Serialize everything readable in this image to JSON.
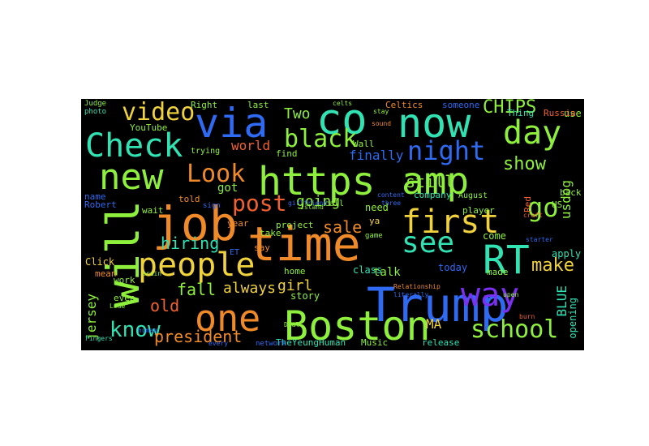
{
  "wordcloud": {
    "background": "#000000",
    "words": [
      {
        "text": "Trump",
        "color": "#2f6af2"
      },
      {
        "text": "Boston",
        "color": "#8ef03c"
      },
      {
        "text": "time",
        "color": "#f08a28"
      },
      {
        "text": "job",
        "color": "#f08a28"
      },
      {
        "text": "https",
        "color": "#8ef03c"
      },
      {
        "text": "people",
        "color": "#f0d23c"
      },
      {
        "text": "new",
        "color": "#8ef03c"
      },
      {
        "text": "now",
        "color": "#31e2b3"
      },
      {
        "text": "co",
        "color": "#31e2b3"
      },
      {
        "text": "via",
        "color": "#2f6af2"
      },
      {
        "text": "amp",
        "color": "#8ef03c"
      },
      {
        "text": "RT",
        "color": "#31e2b3"
      },
      {
        "text": "first",
        "color": "#f0d23c"
      },
      {
        "text": "one",
        "color": "#f08a28"
      },
      {
        "text": "Check",
        "color": "#31e2b3"
      },
      {
        "text": "will",
        "color": "#8ef03c"
      },
      {
        "text": "way",
        "color": "#7b2ff0"
      },
      {
        "text": "day",
        "color": "#8ef03c"
      },
      {
        "text": "Look",
        "color": "#f08a28"
      },
      {
        "text": "night",
        "color": "#2f6af2"
      },
      {
        "text": "post",
        "color": "#f2602e"
      },
      {
        "text": "black",
        "color": "#8ef03c"
      },
      {
        "text": "see",
        "color": "#31e2b3"
      },
      {
        "text": "video",
        "color": "#f0d23c"
      },
      {
        "text": "go",
        "color": "#8ef03c"
      },
      {
        "text": "know",
        "color": "#31e2b3"
      },
      {
        "text": "school",
        "color": "#8ef03c"
      },
      {
        "text": "president",
        "color": "#f08a28"
      },
      {
        "text": "CHIPS",
        "color": "#8ef03c"
      },
      {
        "text": "show",
        "color": "#8ef03c"
      },
      {
        "text": "still",
        "color": "#8ef03c"
      },
      {
        "text": "make",
        "color": "#f0d23c"
      },
      {
        "text": "old",
        "color": "#f2602e"
      },
      {
        "text": "fall",
        "color": "#8ef03c"
      },
      {
        "text": "always",
        "color": "#f0d23c"
      },
      {
        "text": "girl",
        "color": "#f0d23c"
      },
      {
        "text": "hiring",
        "color": "#31e2b3"
      },
      {
        "text": "sale",
        "color": "#f08a28"
      },
      {
        "text": "going",
        "color": "#8ef03c"
      },
      {
        "text": "Two",
        "color": "#8ef03c"
      },
      {
        "text": "jersey",
        "color": "#8ef03c"
      },
      {
        "text": "BLUE",
        "color": "#31e2b3"
      },
      {
        "text": "opening",
        "color": "#31e2b3"
      },
      {
        "text": "MA",
        "color": "#f0d23c"
      },
      {
        "text": "usdog",
        "color": "#8ef03c"
      },
      {
        "text": "finally",
        "color": "#2f6af2"
      },
      {
        "text": "world",
        "color": "#f2602e"
      },
      {
        "text": "got",
        "color": "#8ef03c"
      },
      {
        "text": "YouTube",
        "color": "#8ef03c"
      },
      {
        "text": "Right",
        "color": "#8ef03c"
      },
      {
        "text": "last",
        "color": "#8ef03c"
      },
      {
        "text": "Celtics",
        "color": "#f08a28"
      },
      {
        "text": "Wall",
        "color": "#8ef03c"
      },
      {
        "text": "player",
        "color": "#8ef03c"
      },
      {
        "text": "company",
        "color": "#31e2b3"
      },
      {
        "text": "need",
        "color": "#8ef03c"
      },
      {
        "text": "talk",
        "color": "#8ef03c"
      },
      {
        "text": "class",
        "color": "#31e2b3"
      },
      {
        "text": "today",
        "color": "#2f6af2"
      },
      {
        "text": "come",
        "color": "#8ef03c"
      },
      {
        "text": "apply",
        "color": "#31e2b3"
      },
      {
        "text": "made",
        "color": "#8ef03c"
      },
      {
        "text": "release",
        "color": "#31e2b3"
      },
      {
        "text": "Music",
        "color": "#8ef03c"
      },
      {
        "text": "story",
        "color": "#8ef03c"
      },
      {
        "text": "home",
        "color": "#8ef03c"
      },
      {
        "text": "TheYeungHuman",
        "color": "#31e2b3"
      },
      {
        "text": "Click",
        "color": "#f0d23c"
      },
      {
        "text": "work",
        "color": "#8ef03c"
      },
      {
        "text": "mean",
        "color": "#f08a28"
      },
      {
        "text": "even",
        "color": "#8ef03c"
      },
      {
        "text": "project",
        "color": "#8ef03c"
      },
      {
        "text": "take",
        "color": "#8ef03c"
      },
      {
        "text": "say",
        "color": "#f08a28"
      },
      {
        "text": "year",
        "color": "#f08a28"
      },
      {
        "text": "told",
        "color": "#f08a28"
      },
      {
        "text": "wait",
        "color": "#8ef03c"
      },
      {
        "text": "name",
        "color": "#2f6af2"
      },
      {
        "text": "Robert",
        "color": "#2f6af2"
      },
      {
        "text": "trying",
        "color": "#8ef03c"
      },
      {
        "text": "find",
        "color": "#8ef03c"
      },
      {
        "text": "someone",
        "color": "#2f6af2"
      },
      {
        "text": "use",
        "color": "#8ef03c"
      },
      {
        "text": "Thing",
        "color": "#31e2b3"
      },
      {
        "text": "Russia",
        "color": "#f2602e"
      },
      {
        "text": "back",
        "color": "#8ef03c"
      },
      {
        "text": "August",
        "color": "#8ef03c"
      },
      {
        "text": "Red",
        "color": "#f2602e"
      },
      {
        "text": "US",
        "color": "#8ef03c"
      },
      {
        "text": "ET",
        "color": "#2f6af2"
      },
      {
        "text": "ya",
        "color": "#f0d23c"
      },
      {
        "text": "call",
        "color": "#8ef03c"
      },
      {
        "text": "sign",
        "color": "#2f6af2"
      },
      {
        "text": "game",
        "color": "#8ef03c"
      },
      {
        "text": "network",
        "color": "#2f6af2"
      },
      {
        "text": "Judge",
        "color": "#8ef03c"
      },
      {
        "text": "photo",
        "color": "#31e2b3"
      },
      {
        "text": "content",
        "color": "#2f6af2"
      },
      {
        "text": "literally",
        "color": "#2f6af2"
      },
      {
        "text": "Relationship",
        "color": "#f08a28"
      },
      {
        "text": "brain",
        "color": "#8ef03c"
      },
      {
        "text": "upen",
        "color": "#8ef03c"
      },
      {
        "text": "human",
        "color": "#2f6af2"
      },
      {
        "text": "Lode",
        "color": "#8ef03c"
      },
      {
        "text": "every",
        "color": "#2f6af2"
      },
      {
        "text": "Fingers",
        "color": "#31e2b3"
      },
      {
        "text": "celts",
        "color": "#8ef03c"
      },
      {
        "text": "Deal",
        "color": "#8ef03c"
      },
      {
        "text": "three",
        "color": "#2f6af2"
      },
      {
        "text": "girlfriend",
        "color": "#2f6af2"
      },
      {
        "text": "stay",
        "color": "#8ef03c"
      },
      {
        "text": "sound",
        "color": "#f08a28"
      },
      {
        "text": "craft",
        "color": "#f2602e"
      },
      {
        "text": "burn",
        "color": "#f2602e"
      },
      {
        "text": "starter",
        "color": "#2f6af2"
      },
      {
        "text": "Island",
        "color": "#8ef03c"
      }
    ]
  }
}
